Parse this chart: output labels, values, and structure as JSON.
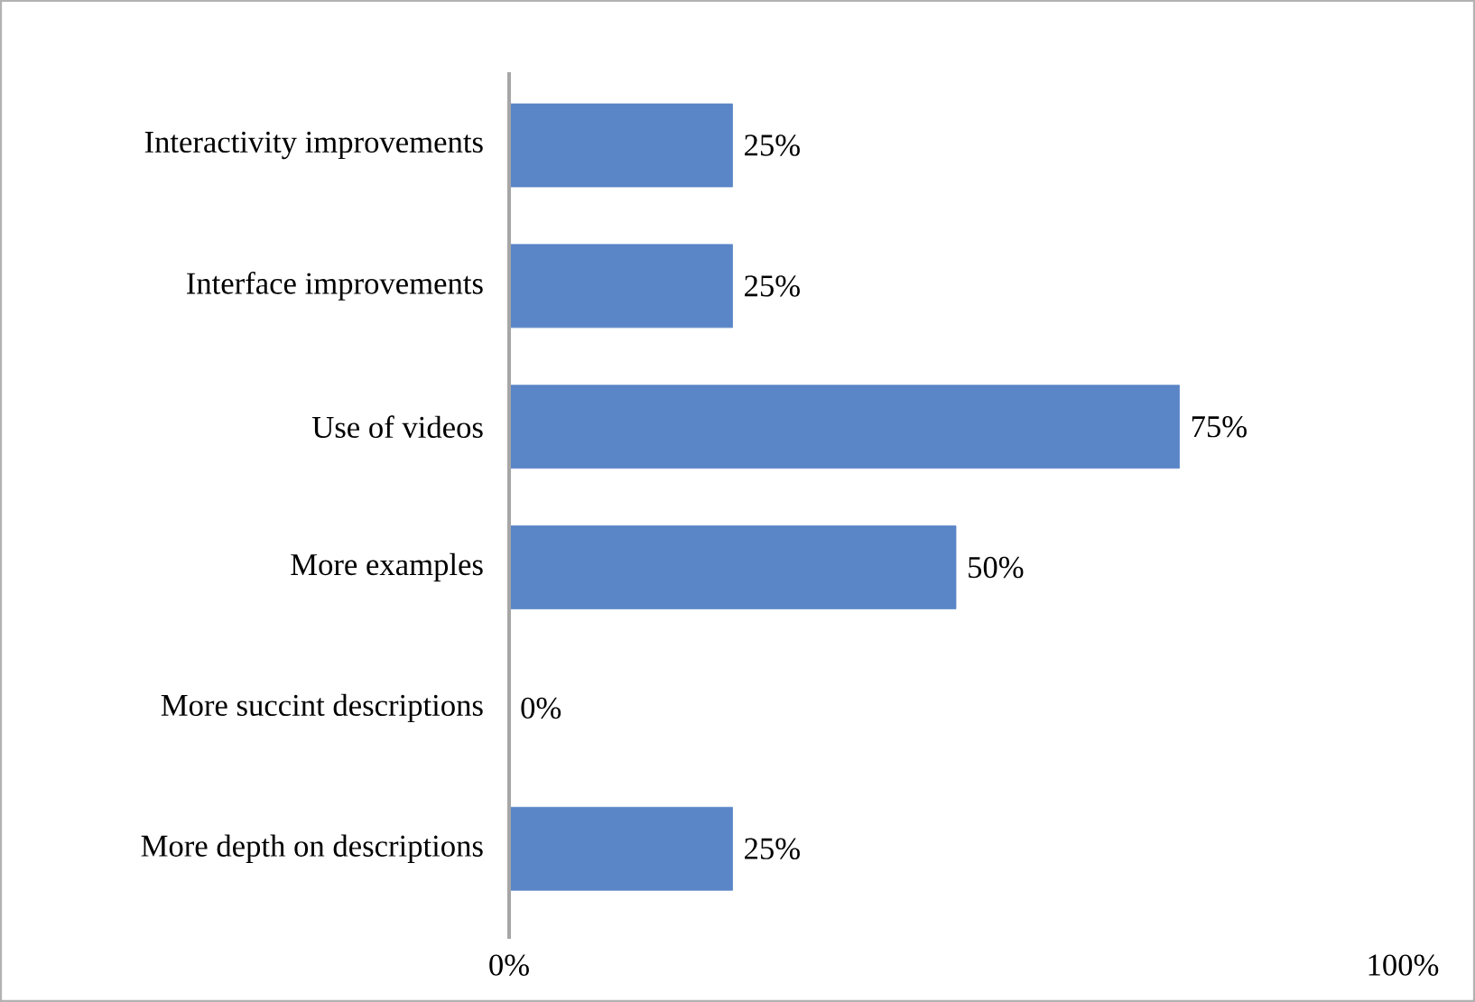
{
  "chart_data": {
    "type": "bar",
    "orientation": "horizontal",
    "categories": [
      "Interactivity improvements",
      "Interface improvements",
      "Use of videos",
      "More examples",
      "More succint descriptions",
      "More depth on descriptions"
    ],
    "values": [
      25,
      25,
      75,
      50,
      0,
      25
    ],
    "value_labels": [
      "25%",
      "25%",
      "75%",
      "50%",
      "0%",
      "25%"
    ],
    "color": "#5a85c6",
    "xlim": [
      0,
      100
    ],
    "xticks": [
      {
        "value": 0,
        "label": "0%"
      },
      {
        "value": 100,
        "label": "100%"
      }
    ],
    "grid": false
  }
}
